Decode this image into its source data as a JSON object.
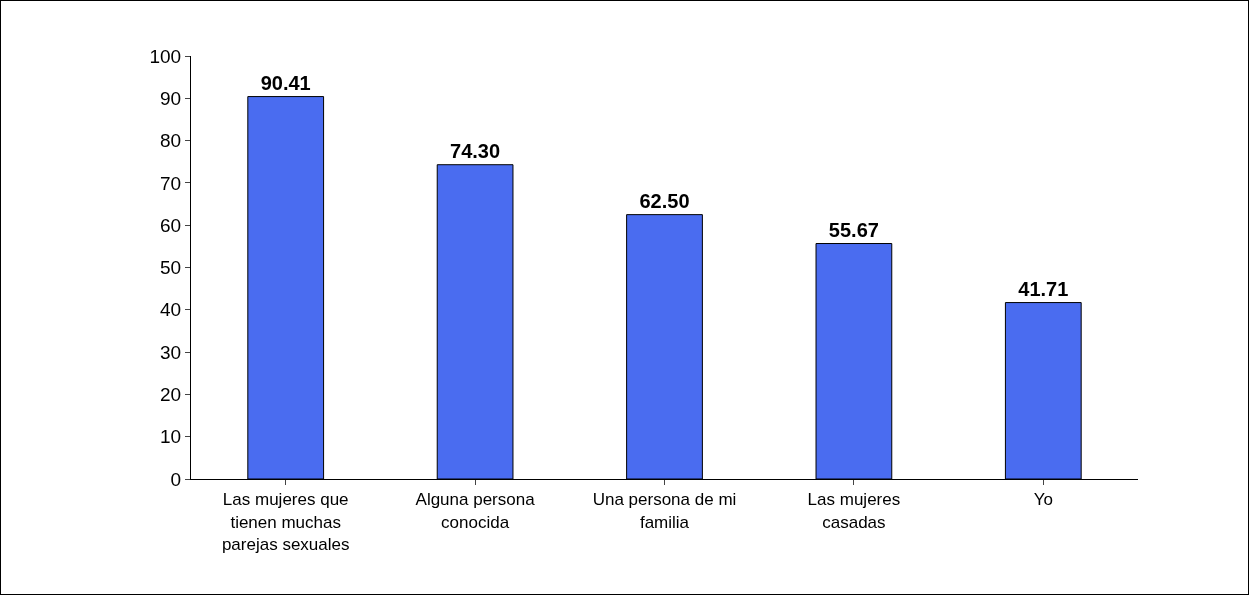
{
  "chart_data": {
    "type": "bar",
    "categories": [
      "Las mujeres que tienen muchas parejas sexuales",
      "Alguna persona conocida",
      "Una persona de mi familia",
      "Las mujeres casadas",
      "Yo"
    ],
    "values": [
      90.41,
      74.3,
      62.5,
      55.67,
      41.71
    ],
    "value_labels": [
      "90.41",
      "74.30",
      "62.50",
      "55.67",
      "41.71"
    ],
    "color": "#4a6cf0",
    "ylim": [
      0,
      100
    ],
    "yticks": [
      0,
      10,
      20,
      30,
      40,
      50,
      60,
      70,
      80,
      90,
      100
    ],
    "grid": false
  }
}
